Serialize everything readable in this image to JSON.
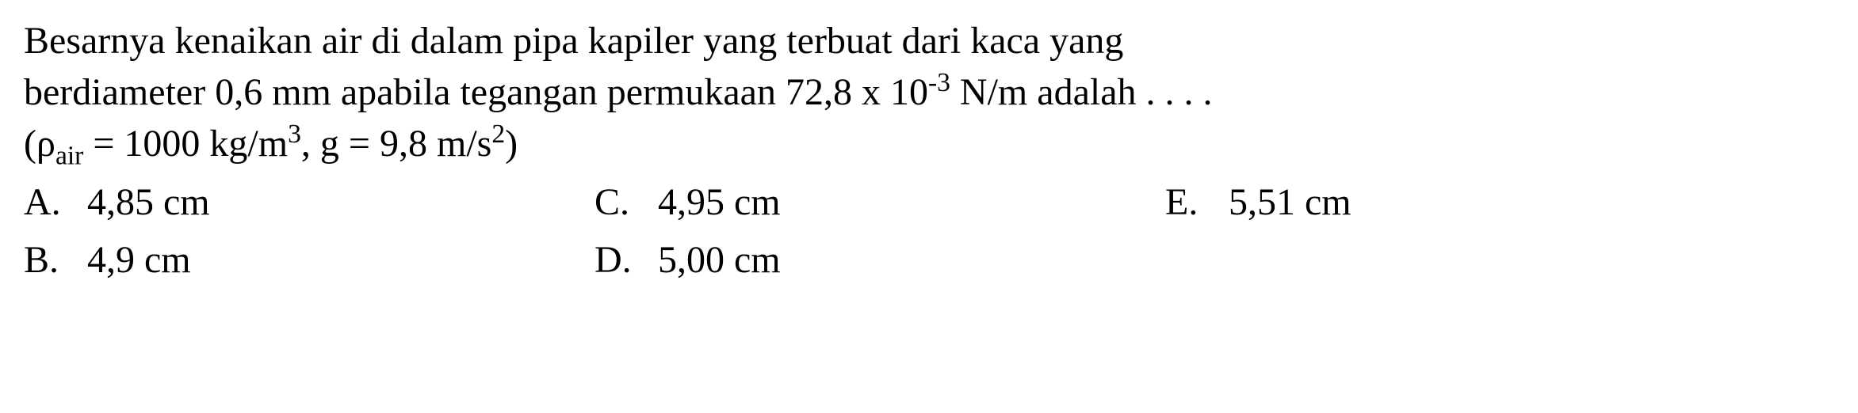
{
  "question": {
    "line1": "Besarnya kenaikan air di dalam pipa kapiler yang terbuat dari kaca yang",
    "line2_pre": "berdiameter 0,6 mm apabila tegangan permukaan 72,8 x 10",
    "line2_exp": "-3",
    "line2_post": " N/m adalah . . . .",
    "line3_pre": "(ρ",
    "line3_sub": "air",
    "line3_mid": " = 1000 kg/m",
    "line3_exp1": "3",
    "line3_mid2": ", g = 9,8 m/s",
    "line3_exp2": "2",
    "line3_post": ")"
  },
  "options": {
    "a": {
      "label": "A.",
      "value": "4,85 cm"
    },
    "b": {
      "label": "B.",
      "value": "4,9 cm"
    },
    "c": {
      "label": "C.",
      "value": "4,95 cm"
    },
    "d": {
      "label": "D.",
      "value": "5,00 cm"
    },
    "e": {
      "label": "E.",
      "value": "5,51 cm"
    }
  },
  "style": {
    "font_family": "Times New Roman",
    "font_size_pt": 36,
    "text_color": "#000000",
    "background_color": "#ffffff"
  }
}
